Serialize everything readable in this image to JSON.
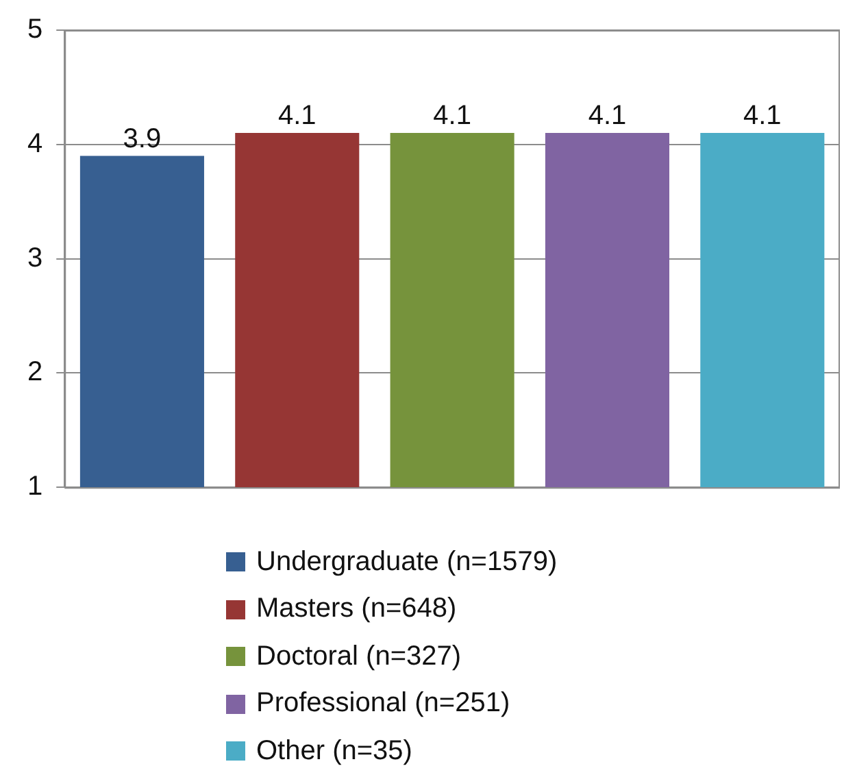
{
  "chart_data": {
    "type": "bar",
    "categories": [
      null
    ],
    "series": [
      {
        "name": "Undergraduate (n=1579)",
        "color": "#375f91",
        "values": [
          3.9
        ]
      },
      {
        "name": "Masters (n=648)",
        "color": "#963634",
        "values": [
          4.1
        ]
      },
      {
        "name": "Doctoral (n=327)",
        "color": "#76933c",
        "values": [
          4.1
        ]
      },
      {
        "name": "Professional (n=251)",
        "color": "#8064a2",
        "values": [
          4.1
        ]
      },
      {
        "name": "Other (n=35)",
        "color": "#4bacc6",
        "values": [
          4.1
        ]
      }
    ],
    "ylim": [
      1,
      5
    ],
    "yticks": [
      1,
      2,
      3,
      4,
      5
    ],
    "grid": "y",
    "legend": "bottom",
    "data_labels": true
  }
}
